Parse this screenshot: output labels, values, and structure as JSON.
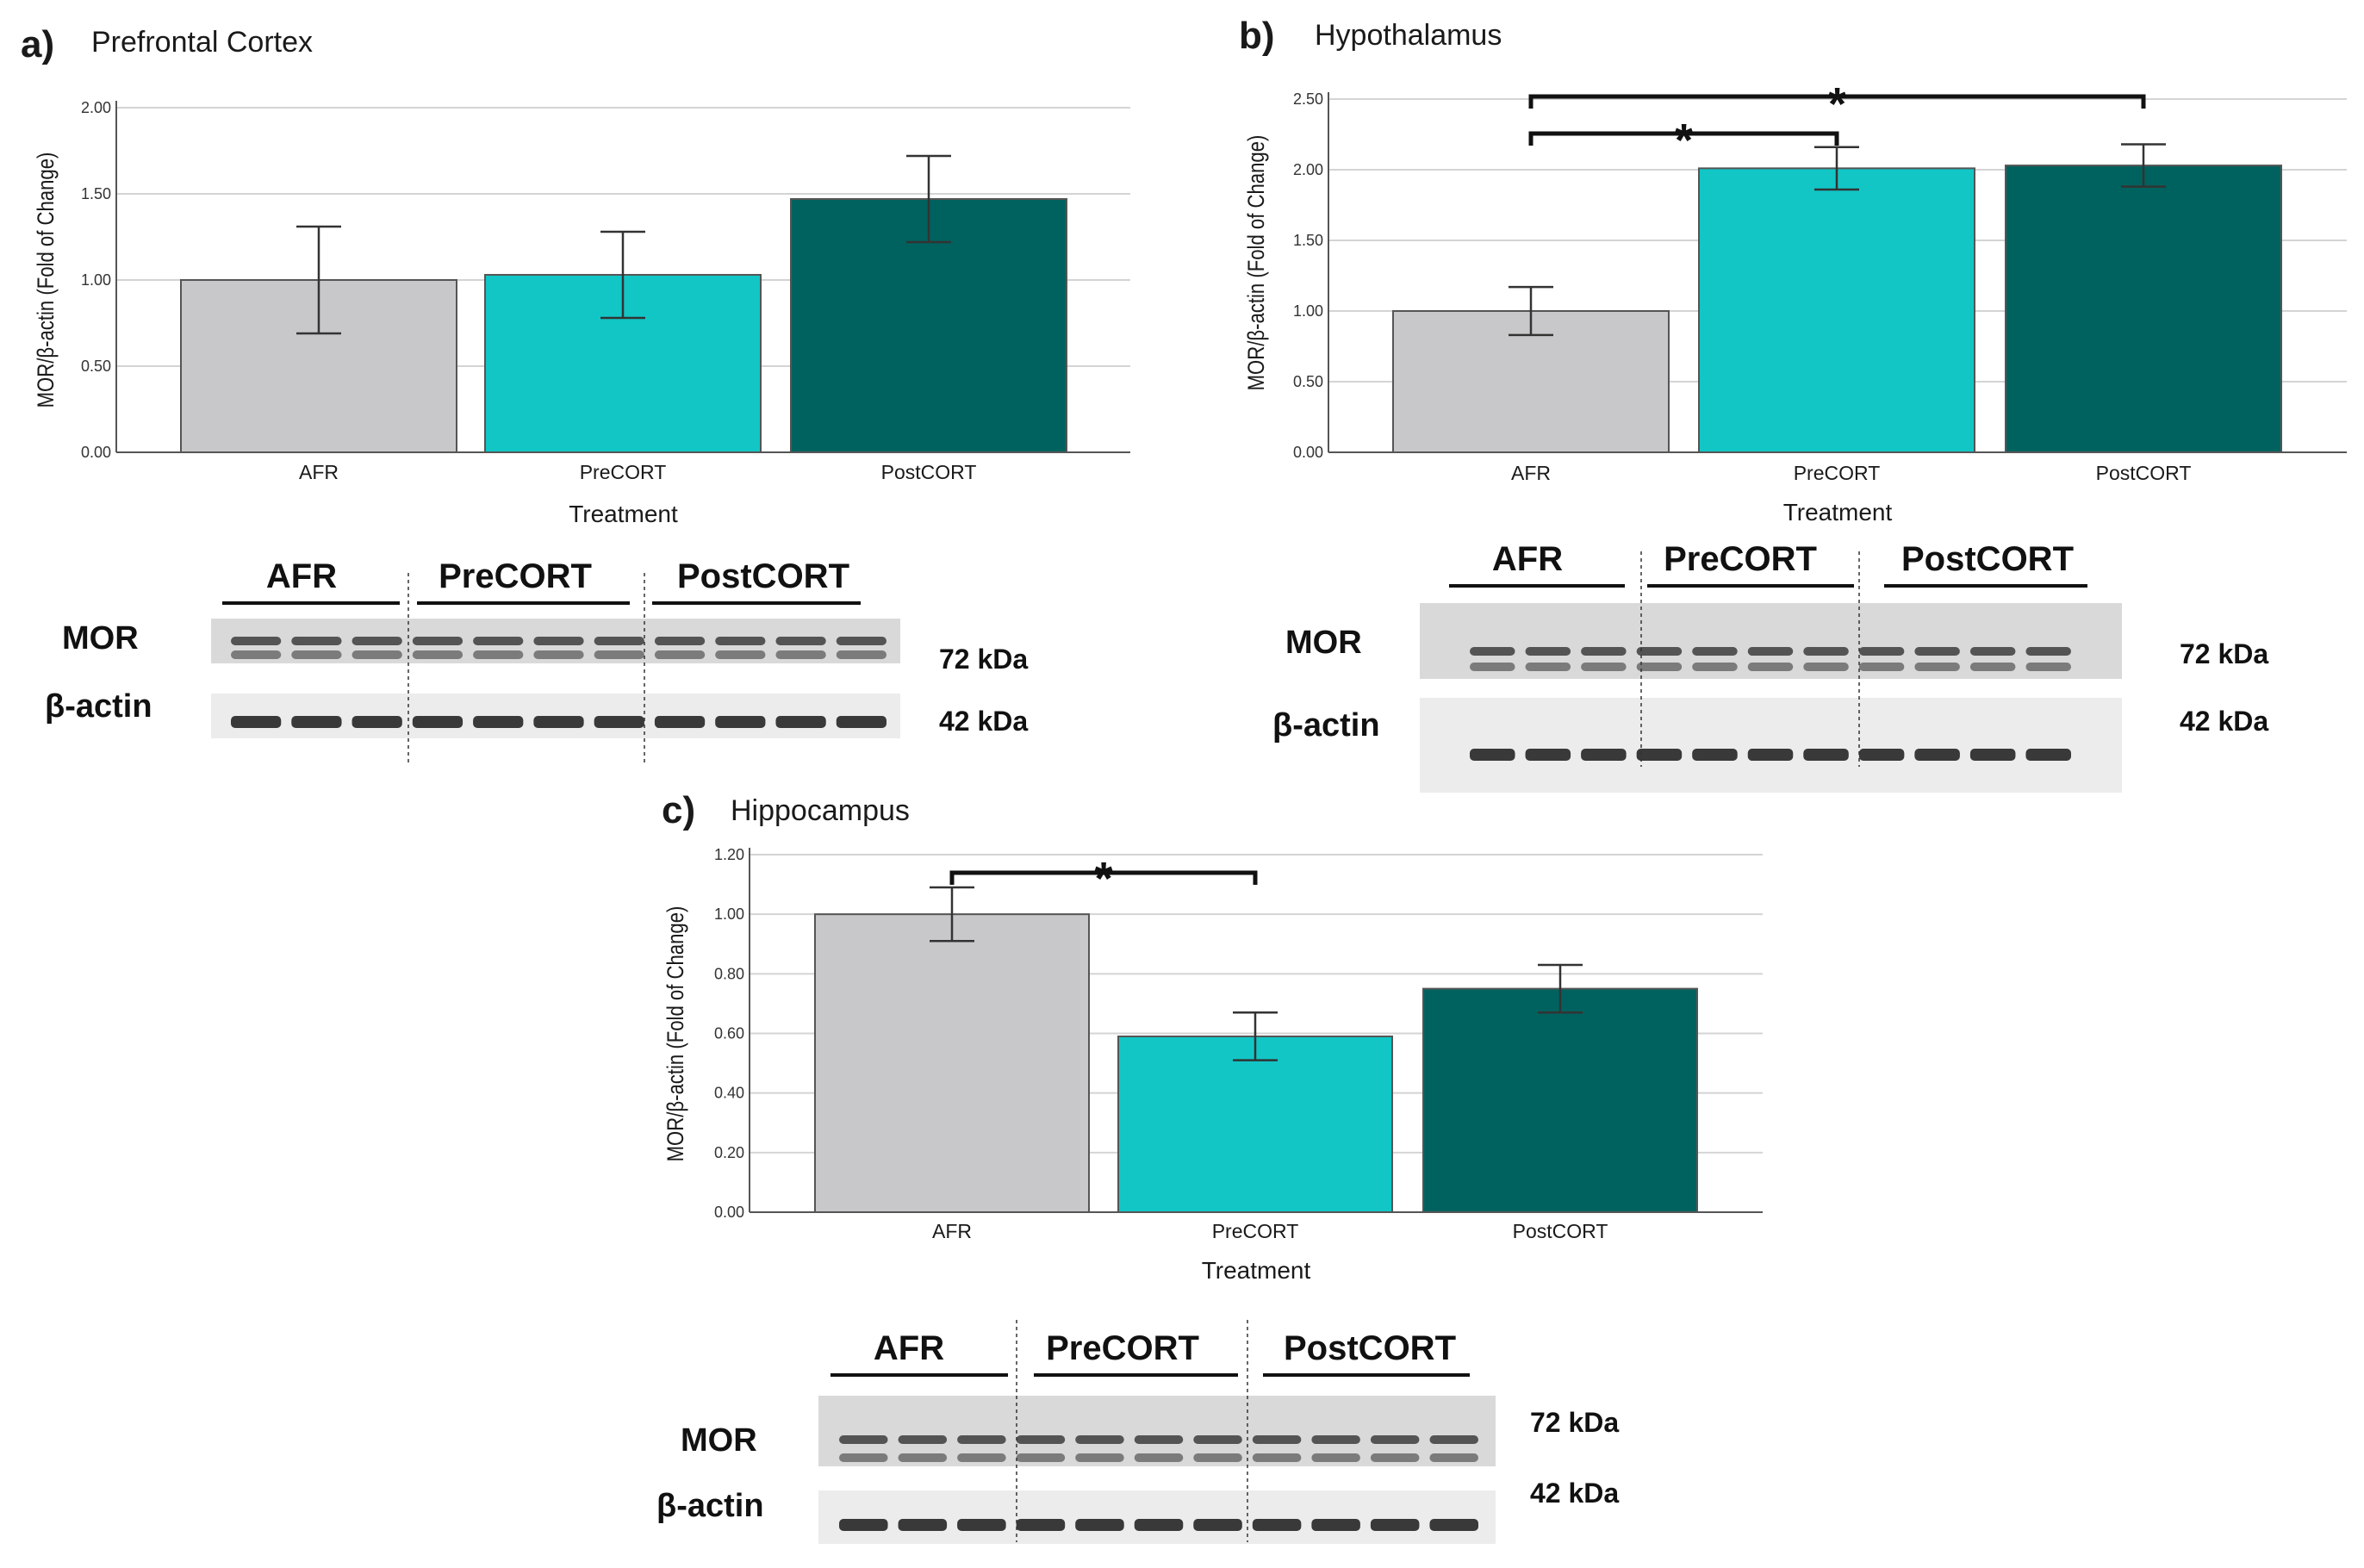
{
  "colors": {
    "afr": "#c8c8ca",
    "precort": "#12c6c6",
    "postcort": "#00625f",
    "grid": "#d4d4d4",
    "axis": "#555555",
    "text": "#1a1a1a"
  },
  "chart_data": [
    {
      "type": "bar",
      "panel_letter": "a)",
      "title": "Prefrontal Cortex",
      "xlabel": "Treatment",
      "ylabel": "MOR/β-actin (Fold of Change)",
      "categories": [
        "AFR",
        "PreCORT",
        "PostCORT"
      ],
      "values": [
        1.0,
        1.03,
        1.47
      ],
      "errors": [
        0.31,
        0.25,
        0.25
      ],
      "ylim": [
        0,
        2.0
      ],
      "yticks": [
        "0.00",
        "0.50",
        "1.00",
        "1.50",
        "2.00"
      ],
      "grid": true,
      "significance": [],
      "blot": {
        "group_labels": [
          "AFR",
          "PreCORT",
          "PostCORT"
        ],
        "row_labels": [
          "MOR",
          "β-actin"
        ],
        "kda_labels": [
          "72 kDa",
          "42 kDa"
        ],
        "lane_counts": [
          3,
          4,
          4
        ]
      }
    },
    {
      "type": "bar",
      "panel_letter": "b)",
      "title": "Hypothalamus",
      "xlabel": "Treatment",
      "ylabel": "MOR/β-actin (Fold of Change)",
      "categories": [
        "AFR",
        "PreCORT",
        "PostCORT"
      ],
      "values": [
        1.0,
        2.01,
        2.03
      ],
      "errors": [
        0.17,
        0.15,
        0.15
      ],
      "ylim": [
        0,
        2.5
      ],
      "yticks": [
        "0.00",
        "0.50",
        "1.00",
        "1.50",
        "2.00",
        "2.50"
      ],
      "grid": true,
      "significance": [
        {
          "from": 0,
          "to": 1,
          "label": "*"
        },
        {
          "from": 0,
          "to": 2,
          "label": "*"
        }
      ],
      "blot": {
        "group_labels": [
          "AFR",
          "PreCORT",
          "PostCORT"
        ],
        "row_labels": [
          "MOR",
          "β-actin"
        ],
        "kda_labels": [
          "72 kDa",
          "42 kDa"
        ],
        "lane_counts": [
          3,
          4,
          4
        ]
      }
    },
    {
      "type": "bar",
      "panel_letter": "c)",
      "title": "Hippocampus",
      "xlabel": "Treatment",
      "ylabel": "MOR/β-actin (Fold of Change)",
      "categories": [
        "AFR",
        "PreCORT",
        "PostCORT"
      ],
      "values": [
        1.0,
        0.59,
        0.75
      ],
      "errors": [
        0.09,
        0.08,
        0.08
      ],
      "ylim": [
        0,
        1.2
      ],
      "yticks": [
        "0.00",
        "0.20",
        "0.40",
        "0.60",
        "0.80",
        "1.00",
        "1.20"
      ],
      "grid": true,
      "significance": [
        {
          "from": 0,
          "to": 1,
          "label": "*"
        }
      ],
      "blot": {
        "group_labels": [
          "AFR",
          "PreCORT",
          "PostCORT"
        ],
        "row_labels": [
          "MOR",
          "β-actin"
        ],
        "kda_labels": [
          "72 kDa",
          "42 kDa"
        ],
        "lane_counts": [
          3,
          4,
          4
        ]
      }
    }
  ]
}
